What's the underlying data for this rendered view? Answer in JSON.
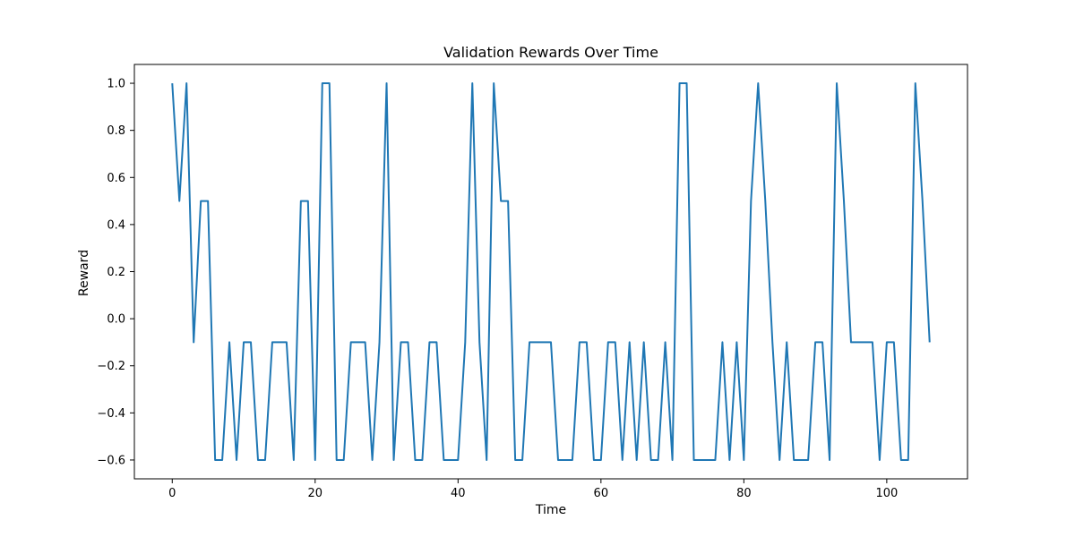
{
  "chart_data": {
    "type": "line",
    "title": "Validation Rewards Over Time",
    "xlabel": "Time",
    "ylabel": "Reward",
    "xlim": [
      -5.3,
      111.3
    ],
    "ylim": [
      -0.68,
      1.08
    ],
    "xticks": [
      0,
      20,
      40,
      60,
      80,
      100
    ],
    "yticks": [
      -0.6,
      -0.4,
      -0.2,
      0.0,
      0.2,
      0.4,
      0.6,
      0.8,
      1.0
    ],
    "xtick_labels": [
      "0",
      "20",
      "40",
      "60",
      "80",
      "100"
    ],
    "ytick_labels": [
      "−0.6",
      "−0.4",
      "−0.2",
      "0.0",
      "0.2",
      "0.4",
      "0.6",
      "0.8",
      "1.0"
    ],
    "grid": false,
    "line_color": "#1f77b4",
    "series": [
      {
        "x": [
          0,
          1,
          2,
          3,
          4,
          5,
          6,
          7,
          8,
          9,
          10,
          11,
          12,
          13,
          14,
          15,
          16,
          17,
          18,
          19,
          20,
          21,
          22,
          23,
          24,
          25,
          26,
          27,
          28,
          29,
          30,
          31,
          32,
          33,
          34,
          35,
          36,
          37,
          38,
          39,
          40,
          41,
          42,
          43,
          44,
          45,
          46,
          47,
          48,
          49,
          50,
          51,
          52,
          53,
          54,
          55,
          56,
          57,
          58,
          59,
          60,
          61,
          62,
          63,
          64,
          65,
          66,
          67,
          68,
          69,
          70,
          71,
          72,
          73,
          74,
          75,
          76,
          77,
          78,
          79,
          80,
          81,
          82,
          83,
          84,
          85,
          86,
          87,
          88,
          89,
          90,
          91,
          92,
          93,
          94,
          95,
          96,
          97,
          98,
          99,
          100,
          101,
          102,
          103,
          104,
          105,
          106
        ],
        "values": [
          1.0,
          0.5,
          1.0,
          -0.1,
          0.5,
          0.5,
          -0.6,
          -0.6,
          -0.1,
          -0.6,
          -0.1,
          -0.1,
          -0.6,
          -0.6,
          -0.1,
          -0.1,
          -0.1,
          -0.6,
          0.5,
          0.5,
          -0.6,
          1.0,
          1.0,
          -0.6,
          -0.6,
          -0.1,
          -0.1,
          -0.1,
          -0.6,
          -0.1,
          1.0,
          -0.6,
          -0.1,
          -0.1,
          -0.6,
          -0.6,
          -0.1,
          -0.1,
          -0.6,
          -0.6,
          -0.6,
          -0.1,
          1.0,
          -0.1,
          -0.6,
          1.0,
          0.5,
          0.5,
          -0.6,
          -0.6,
          -0.1,
          -0.1,
          -0.1,
          -0.1,
          -0.6,
          -0.6,
          -0.6,
          -0.1,
          -0.1,
          -0.6,
          -0.6,
          -0.1,
          -0.1,
          -0.6,
          -0.1,
          -0.6,
          -0.1,
          -0.6,
          -0.6,
          -0.1,
          -0.6,
          1.0,
          1.0,
          -0.6,
          -0.6,
          -0.6,
          -0.6,
          -0.1,
          -0.6,
          -0.1,
          -0.6,
          0.5,
          1.0,
          0.5,
          -0.1,
          -0.6,
          -0.1,
          -0.6,
          -0.6,
          -0.6,
          -0.1,
          -0.1,
          -0.6,
          1.0,
          0.5,
          -0.1,
          -0.1,
          -0.1,
          -0.1,
          -0.6,
          -0.1,
          -0.1,
          -0.6,
          -0.6,
          1.0,
          0.5,
          -0.1
        ]
      }
    ]
  }
}
